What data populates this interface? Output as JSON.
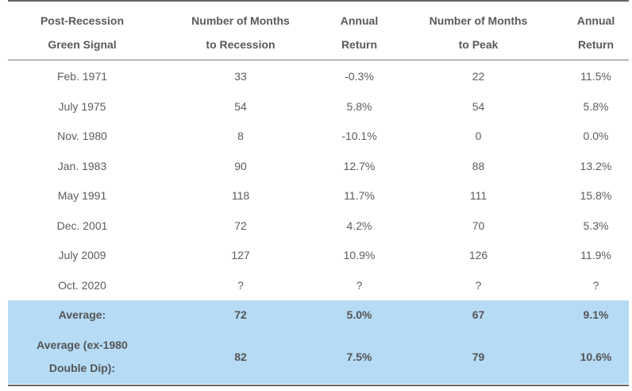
{
  "header": {
    "col1": [
      "Post-Recession",
      "Green Signal"
    ],
    "col2": [
      "Number of Months",
      "to Recession"
    ],
    "col3": [
      "Annual",
      "Return"
    ],
    "col4": [
      "Number of Months",
      "to Peak"
    ],
    "col5": [
      "Annual",
      "Return"
    ]
  },
  "rows": [
    {
      "signal": "Feb. 1971",
      "months_to_recession": "33",
      "return_recession": "-0.3%",
      "months_to_peak": "22",
      "return_peak": "11.5%"
    },
    {
      "signal": "July 1975",
      "months_to_recession": "54",
      "return_recession": "5.8%",
      "months_to_peak": "54",
      "return_peak": "5.8%"
    },
    {
      "signal": "Nov. 1980",
      "months_to_recession": "8",
      "return_recession": "-10.1%",
      "months_to_peak": "0",
      "return_peak": "0.0%"
    },
    {
      "signal": "Jan. 1983",
      "months_to_recession": "90",
      "return_recession": "12.7%",
      "months_to_peak": "88",
      "return_peak": "13.2%"
    },
    {
      "signal": "May 1991",
      "months_to_recession": "118",
      "return_recession": "11.7%",
      "months_to_peak": "111",
      "return_peak": "15.8%"
    },
    {
      "signal": "Dec. 2001",
      "months_to_recession": "72",
      "return_recession": "4.2%",
      "months_to_peak": "70",
      "return_peak": "5.3%"
    },
    {
      "signal": "July 2009",
      "months_to_recession": "127",
      "return_recession": "10.9%",
      "months_to_peak": "126",
      "return_peak": "11.9%"
    },
    {
      "signal": "Oct. 2020",
      "months_to_recession": "?",
      "return_recession": "?",
      "months_to_peak": "?",
      "return_peak": "?"
    }
  ],
  "average": {
    "label": "Average:",
    "months_to_recession": "72",
    "return_recession": "5.0%",
    "months_to_peak": "67",
    "return_peak": "9.1%"
  },
  "average_ex": {
    "label": [
      "Average (ex-1980",
      "Double Dip):"
    ],
    "months_to_recession": "82",
    "return_recession": "7.5%",
    "months_to_peak": "79",
    "return_peak": "10.6%"
  },
  "colors": {
    "highlight": "#b6dbf5",
    "text": "#555555",
    "rule": "#666666"
  }
}
